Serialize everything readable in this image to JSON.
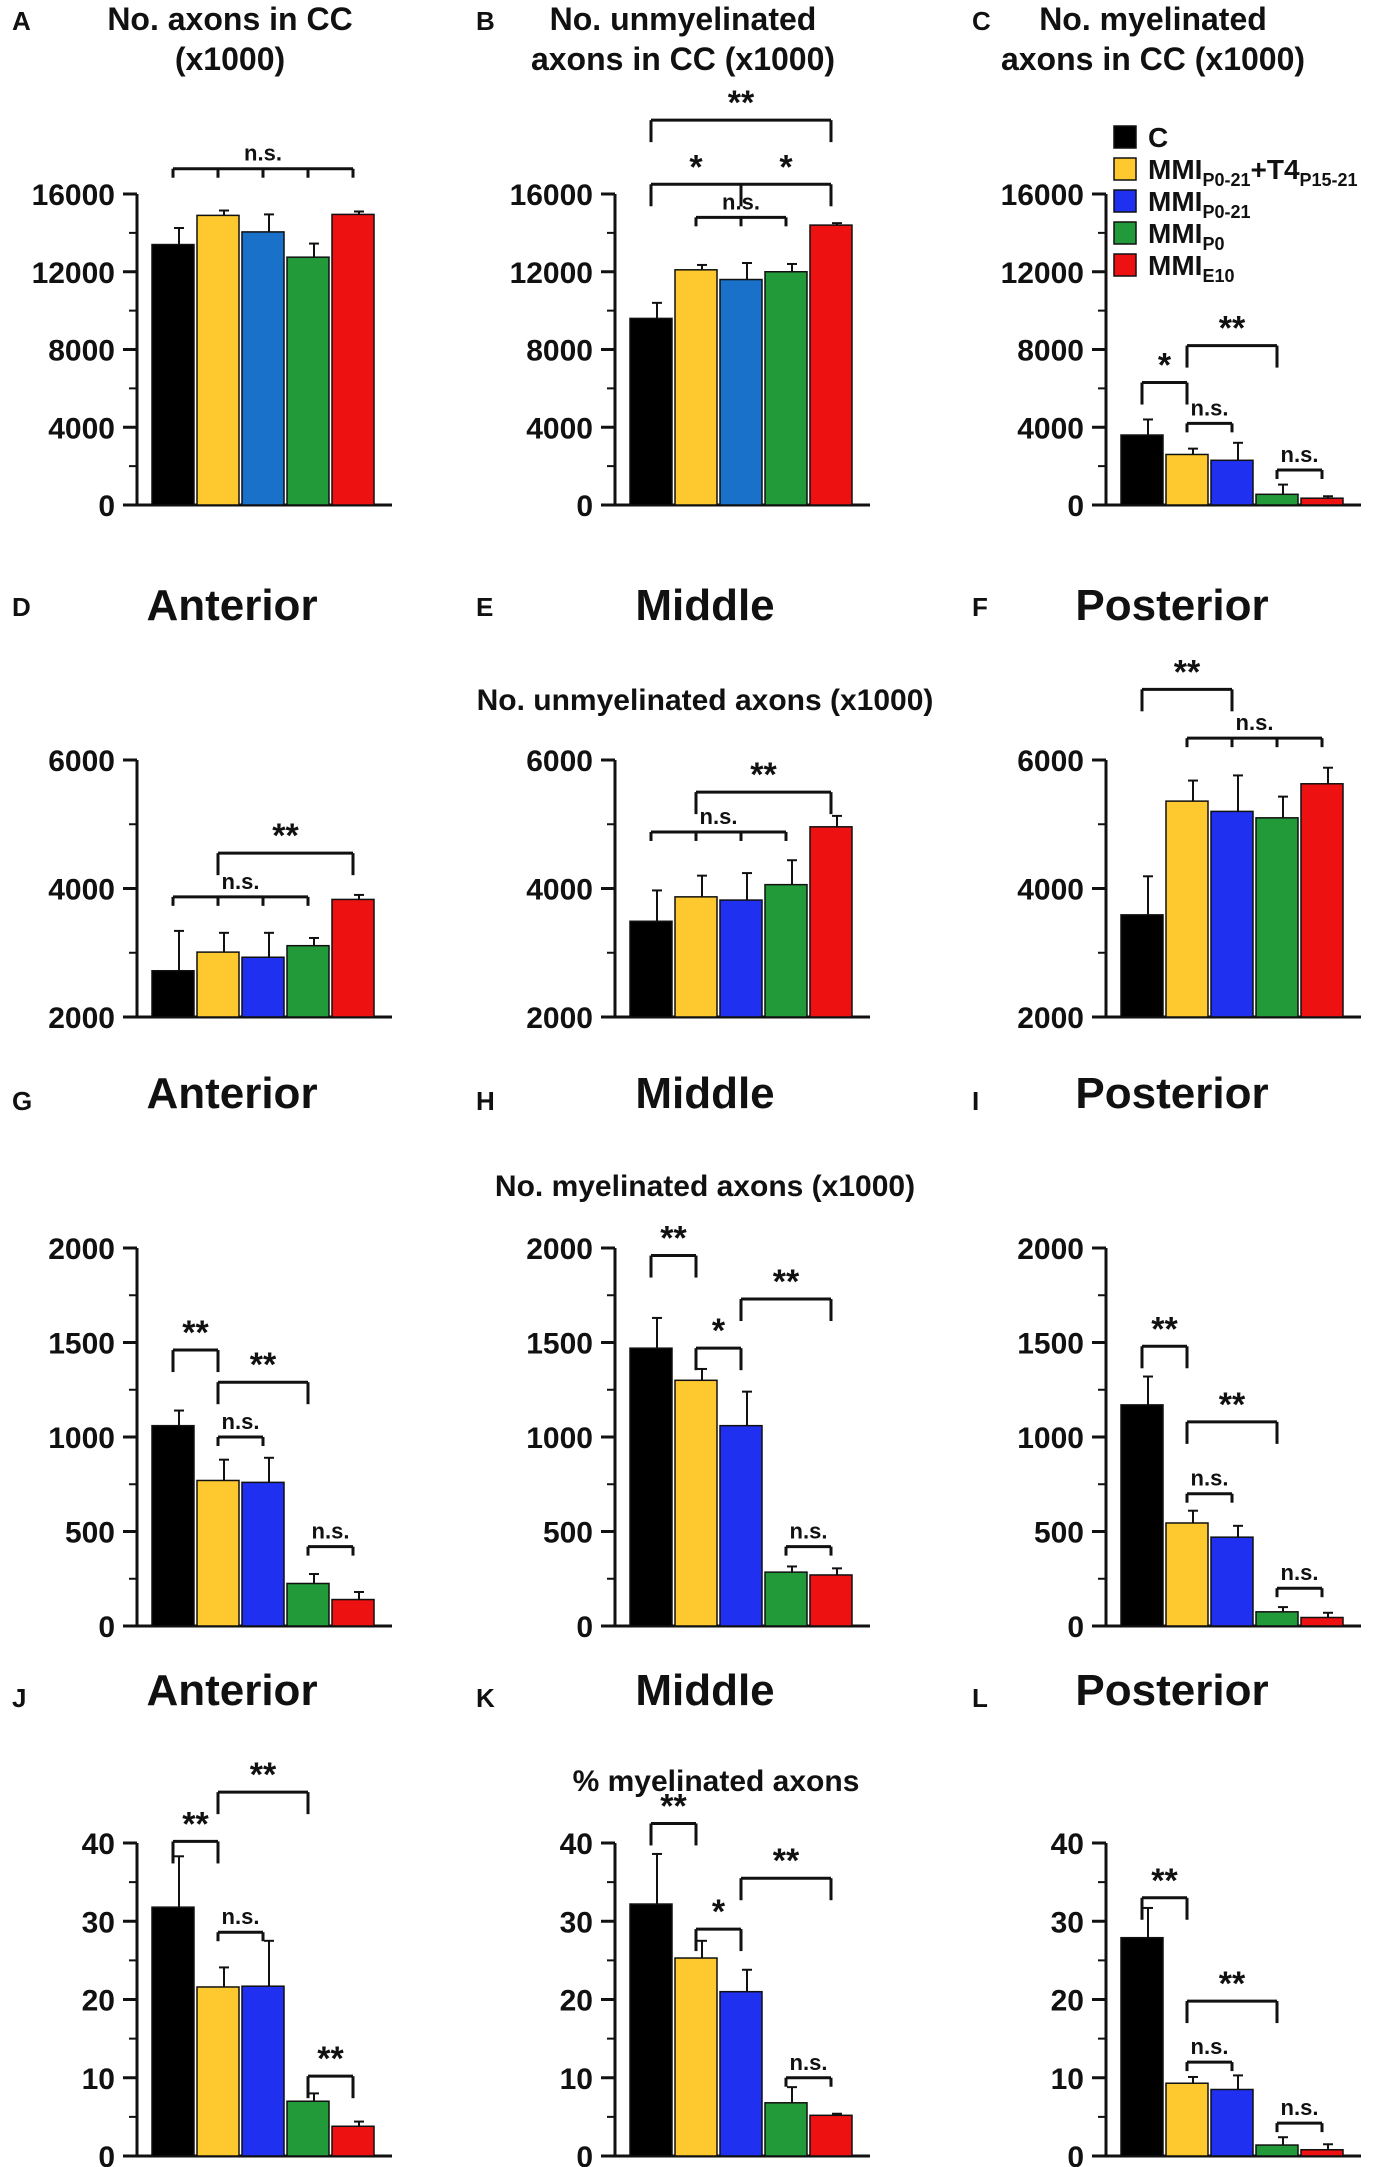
{
  "legend": [
    {
      "key": "C",
      "label": "C",
      "base": "C",
      "sub": "",
      "mid": "",
      "sub2": "",
      "color": "#000000"
    },
    {
      "key": "MMI_P0-21+T4",
      "label": "MMIP0-21+T4P15-21",
      "base": "MMI",
      "sub": "P0-21",
      "mid": "+T4",
      "sub2": "P15-21",
      "color": "#FEC82F"
    },
    {
      "key": "MMI_P0-21",
      "label": "MMIP0-21",
      "base": "MMI",
      "sub": "P0-21",
      "mid": "",
      "sub2": "",
      "color": "#1F30F0"
    },
    {
      "key": "MMI_P0",
      "label": "MMIP0",
      "base": "MMI",
      "sub": "P0",
      "mid": "",
      "sub2": "",
      "color": "#229A3A"
    },
    {
      "key": "MMI_E10",
      "label": "MMIE10",
      "base": "MMI",
      "sub": "E10",
      "mid": "",
      "sub2": "",
      "color": "#EE1111"
    }
  ],
  "row_labels": [
    "No. unmyelinated axons (x1000)",
    "No. myelinated axons (x1000)",
    "% myelinated axons"
  ],
  "chart_data": [
    {
      "panel": "A",
      "type": "bar",
      "title": [
        "No. axons in CC",
        "(x1000)"
      ],
      "categories": [
        "C",
        "MMIP0-21+T4P15-21",
        "MMIP0-21",
        "MMIP0",
        "MMIE10"
      ],
      "colors": [
        "#000000",
        "#FEC82F",
        "#1A71C9",
        "#229A3A",
        "#EE1111"
      ],
      "values": [
        13400,
        14900,
        14050,
        12750,
        14950
      ],
      "errors": [
        850,
        250,
        900,
        700,
        150
      ],
      "ylim": [
        0,
        16000
      ],
      "yticks": [
        "0",
        "4000",
        "8000",
        "12000",
        "16000"
      ],
      "brackets": [
        {
          "label": "n.s.",
          "groups": [
            0,
            4
          ],
          "ticks": [
            0,
            1,
            2,
            3,
            4
          ],
          "value": 17300
        }
      ]
    },
    {
      "panel": "B",
      "type": "bar",
      "title": [
        "No. unmyelinated",
        "axons in CC (x1000)"
      ],
      "categories": [
        "C",
        "MMIP0-21+T4P15-21",
        "MMIP0-21",
        "MMIP0",
        "MMIE10"
      ],
      "colors": [
        "#000000",
        "#FEC82F",
        "#1A71C9",
        "#229A3A",
        "#EE1111"
      ],
      "values": [
        9600,
        12100,
        11600,
        12000,
        14400
      ],
      "errors": [
        800,
        250,
        850,
        400,
        100
      ],
      "ylim": [
        0,
        16000
      ],
      "yticks": [
        "0",
        "4000",
        "8000",
        "12000",
        "16000"
      ],
      "brackets": [
        {
          "label": "**",
          "groups": [
            0,
            4
          ],
          "value": 19800
        },
        {
          "label": "*",
          "groups": [
            0,
            2
          ],
          "value": 16500
        },
        {
          "label": "*",
          "groups": [
            2,
            4
          ],
          "value": 16500
        },
        {
          "label": "n.s.",
          "groups": [
            1,
            3
          ],
          "ticks": [
            1,
            2,
            3
          ],
          "value": 14800
        }
      ]
    },
    {
      "panel": "C",
      "type": "bar",
      "title": [
        "No. myelinated",
        "axons in CC (x1000)"
      ],
      "categories": [
        "C",
        "MMIP0-21+T4P15-21",
        "MMIP0-21",
        "MMIP0",
        "MMIE10"
      ],
      "colors": [
        "#000000",
        "#FEC82F",
        "#1F30F0",
        "#229A3A",
        "#EE1111"
      ],
      "values": [
        3600,
        2600,
        2300,
        550,
        350
      ],
      "errors": [
        800,
        300,
        900,
        500,
        100
      ],
      "ylim": [
        0,
        16000
      ],
      "yticks": [
        "0",
        "4000",
        "8000",
        "12000",
        "16000"
      ],
      "brackets": [
        {
          "label": "*",
          "groups": [
            0,
            1
          ],
          "value": 6300
        },
        {
          "label": "**",
          "groups": [
            1,
            3
          ],
          "value": 8200
        },
        {
          "label": "n.s.",
          "groups": [
            1,
            2
          ],
          "value": 4200
        },
        {
          "label": "n.s.",
          "groups": [
            3,
            4
          ],
          "value": 1800
        }
      ]
    },
    {
      "panel": "D",
      "type": "bar",
      "title": [
        "Anterior"
      ],
      "categories": [
        "C",
        "MMIP0-21+T4P15-21",
        "MMIP0-21",
        "MMIP0",
        "MMIE10"
      ],
      "colors": [
        "#000000",
        "#FEC82F",
        "#1F30F0",
        "#229A3A",
        "#EE1111"
      ],
      "values": [
        2720,
        3010,
        2930,
        3110,
        3830
      ],
      "errors": [
        620,
        300,
        380,
        120,
        70
      ],
      "ylim": [
        2000,
        6000
      ],
      "yticks": [
        "2000",
        "4000",
        "6000"
      ],
      "brackets": [
        {
          "label": "**",
          "groups": [
            1,
            4
          ],
          "value": 4550
        },
        {
          "label": "n.s.",
          "groups": [
            0,
            3
          ],
          "ticks": [
            0,
            1,
            2,
            3
          ],
          "value": 3870
        }
      ]
    },
    {
      "panel": "E",
      "type": "bar",
      "title": [
        "Middle"
      ],
      "categories": [
        "C",
        "MMIP0-21+T4P15-21",
        "MMIP0-21",
        "MMIP0",
        "MMIE10"
      ],
      "colors": [
        "#000000",
        "#FEC82F",
        "#1F30F0",
        "#229A3A",
        "#EE1111"
      ],
      "values": [
        3490,
        3870,
        3820,
        4060,
        4960
      ],
      "errors": [
        480,
        330,
        420,
        380,
        170
      ],
      "ylim": [
        2000,
        6000
      ],
      "yticks": [
        "2000",
        "4000",
        "6000"
      ],
      "brackets": [
        {
          "label": "**",
          "groups": [
            1,
            4
          ],
          "value": 5500
        },
        {
          "label": "n.s.",
          "groups": [
            0,
            3
          ],
          "ticks": [
            0,
            1,
            2,
            3
          ],
          "value": 4880
        }
      ]
    },
    {
      "panel": "F",
      "type": "bar",
      "title": [
        "Posterior"
      ],
      "categories": [
        "C",
        "MMIP0-21+T4P15-21",
        "MMIP0-21",
        "MMIP0",
        "MMIE10"
      ],
      "colors": [
        "#000000",
        "#FEC82F",
        "#1F30F0",
        "#229A3A",
        "#EE1111"
      ],
      "values": [
        3590,
        5360,
        5200,
        5100,
        5630
      ],
      "errors": [
        600,
        320,
        560,
        330,
        250
      ],
      "ylim": [
        2000,
        6000
      ],
      "yticks": [
        "2000",
        "4000",
        "6000"
      ],
      "brackets": [
        {
          "label": "**",
          "groups": [
            0,
            2
          ],
          "value": 7100
        },
        {
          "label": "n.s.",
          "groups": [
            1,
            4
          ],
          "ticks": [
            1,
            2,
            3,
            4
          ],
          "value": 6340
        }
      ]
    },
    {
      "panel": "G",
      "type": "bar",
      "title": [
        "Anterior"
      ],
      "categories": [
        "C",
        "MMIP0-21+T4P15-21",
        "MMIP0-21",
        "MMIP0",
        "MMIE10"
      ],
      "colors": [
        "#000000",
        "#FEC82F",
        "#1F30F0",
        "#229A3A",
        "#EE1111"
      ],
      "values": [
        1060,
        770,
        760,
        225,
        140
      ],
      "errors": [
        80,
        110,
        130,
        50,
        40
      ],
      "ylim": [
        0,
        2000
      ],
      "yticks": [
        "0",
        "500",
        "1000",
        "1500",
        "2000"
      ],
      "brackets": [
        {
          "label": "**",
          "groups": [
            0,
            1
          ],
          "value": 1460
        },
        {
          "label": "**",
          "groups": [
            1,
            3
          ],
          "value": 1290
        },
        {
          "label": "n.s.",
          "groups": [
            1,
            2
          ],
          "value": 1000
        },
        {
          "label": "n.s.",
          "groups": [
            3,
            4
          ],
          "value": 420
        }
      ]
    },
    {
      "panel": "H",
      "type": "bar",
      "title": [
        "Middle"
      ],
      "categories": [
        "C",
        "MMIP0-21+T4P15-21",
        "MMIP0-21",
        "MMIP0",
        "MMIE10"
      ],
      "colors": [
        "#000000",
        "#FEC82F",
        "#1F30F0",
        "#229A3A",
        "#EE1111"
      ],
      "values": [
        1470,
        1300,
        1060,
        285,
        270
      ],
      "errors": [
        160,
        60,
        180,
        30,
        35
      ],
      "ylim": [
        0,
        2000
      ],
      "yticks": [
        "0",
        "500",
        "1000",
        "1500",
        "2000"
      ],
      "brackets": [
        {
          "label": "**",
          "groups": [
            0,
            1
          ],
          "value": 1960
        },
        {
          "label": "*",
          "groups": [
            1,
            2
          ],
          "value": 1470
        },
        {
          "label": "**",
          "groups": [
            2,
            4
          ],
          "value": 1730
        },
        {
          "label": "n.s.",
          "groups": [
            3,
            4
          ],
          "value": 420
        }
      ]
    },
    {
      "panel": "I",
      "type": "bar",
      "title": [
        "Posterior"
      ],
      "categories": [
        "C",
        "MMIP0-21+T4P15-21",
        "MMIP0-21",
        "MMIP0",
        "MMIE10"
      ],
      "colors": [
        "#000000",
        "#FEC82F",
        "#1F30F0",
        "#229A3A",
        "#EE1111"
      ],
      "values": [
        1170,
        545,
        470,
        75,
        45
      ],
      "errors": [
        150,
        65,
        60,
        25,
        25
      ],
      "ylim": [
        0,
        2000
      ],
      "yticks": [
        "0",
        "500",
        "1000",
        "1500",
        "2000"
      ],
      "brackets": [
        {
          "label": "**",
          "groups": [
            0,
            1
          ],
          "value": 1480
        },
        {
          "label": "**",
          "groups": [
            1,
            3
          ],
          "value": 1080
        },
        {
          "label": "n.s.",
          "groups": [
            1,
            2
          ],
          "value": 700
        },
        {
          "label": "n.s.",
          "groups": [
            3,
            4
          ],
          "value": 200
        }
      ]
    },
    {
      "panel": "J",
      "type": "bar",
      "title": [
        "Anterior"
      ],
      "categories": [
        "C",
        "MMIP0-21+T4P15-21",
        "MMIP0-21",
        "MMIP0",
        "MMIE10"
      ],
      "colors": [
        "#000000",
        "#FEC82F",
        "#1F30F0",
        "#229A3A",
        "#EE1111"
      ],
      "values": [
        31.8,
        21.6,
        21.7,
        7.0,
        3.8
      ],
      "errors": [
        6.5,
        2.5,
        5.8,
        1.0,
        0.6
      ],
      "ylim": [
        0,
        40
      ],
      "yticks": [
        "0",
        "10",
        "20",
        "30",
        "40"
      ],
      "brackets": [
        {
          "label": "**",
          "groups": [
            0,
            1
          ],
          "value": 40.2
        },
        {
          "label": "**",
          "groups": [
            1,
            3
          ],
          "value": 46.5
        },
        {
          "label": "n.s.",
          "groups": [
            1,
            2
          ],
          "value": 28.6
        },
        {
          "label": "**",
          "groups": [
            3,
            4
          ],
          "value": 10.2
        }
      ]
    },
    {
      "panel": "K",
      "type": "bar",
      "title": [
        "Middle"
      ],
      "categories": [
        "C",
        "MMIP0-21+T4P15-21",
        "MMIP0-21",
        "MMIP0",
        "MMIE10"
      ],
      "colors": [
        "#000000",
        "#FEC82F",
        "#1F30F0",
        "#229A3A",
        "#EE1111"
      ],
      "values": [
        32.2,
        25.3,
        21.0,
        6.8,
        5.2
      ],
      "errors": [
        6.4,
        2.2,
        2.8,
        2.0,
        0.2
      ],
      "ylim": [
        0,
        40
      ],
      "yticks": [
        "0",
        "10",
        "20",
        "30",
        "40"
      ],
      "brackets": [
        {
          "label": "**",
          "groups": [
            0,
            1
          ],
          "value": 42.5
        },
        {
          "label": "*",
          "groups": [
            1,
            2
          ],
          "value": 29.0
        },
        {
          "label": "**",
          "groups": [
            2,
            4
          ],
          "value": 35.5
        },
        {
          "label": "n.s.",
          "groups": [
            3,
            4
          ],
          "value": 10.0
        }
      ]
    },
    {
      "panel": "L",
      "type": "bar",
      "title": [
        "Posterior"
      ],
      "categories": [
        "C",
        "MMIP0-21+T4P15-21",
        "MMIP0-21",
        "MMIP0",
        "MMIE10"
      ],
      "colors": [
        "#000000",
        "#FEC82F",
        "#1F30F0",
        "#229A3A",
        "#EE1111"
      ],
      "values": [
        27.9,
        9.3,
        8.5,
        1.4,
        0.8
      ],
      "errors": [
        3.8,
        0.8,
        1.8,
        1.0,
        0.7
      ],
      "ylim": [
        0,
        40
      ],
      "yticks": [
        "0",
        "10",
        "20",
        "30",
        "40"
      ],
      "brackets": [
        {
          "label": "**",
          "groups": [
            0,
            1
          ],
          "value": 33.0
        },
        {
          "label": "**",
          "groups": [
            1,
            3
          ],
          "value": 19.8
        },
        {
          "label": "n.s.",
          "groups": [
            1,
            2
          ],
          "value": 12.0
        },
        {
          "label": "n.s.",
          "groups": [
            3,
            4
          ],
          "value": 4.2
        }
      ]
    }
  ]
}
